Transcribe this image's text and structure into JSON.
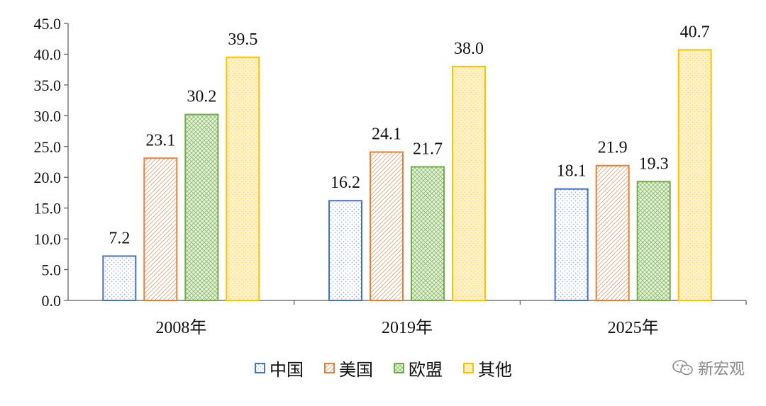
{
  "chart_data": {
    "type": "bar",
    "categories": [
      "2008年",
      "2019年",
      "2025年"
    ],
    "series": [
      {
        "name": "中国",
        "values": [
          7.2,
          16.2,
          18.1
        ],
        "color": "#4472C4",
        "pattern": "dots"
      },
      {
        "name": "美国",
        "values": [
          23.1,
          24.1,
          21.9
        ],
        "color": "#ED7D31",
        "pattern": "diagonal"
      },
      {
        "name": "欧盟",
        "values": [
          30.2,
          21.7,
          19.3
        ],
        "color": "#70AD47",
        "pattern": "crosshatch"
      },
      {
        "name": "其他",
        "values": [
          39.5,
          38.0,
          40.7
        ],
        "color": "#FFC000",
        "pattern": "dots"
      }
    ],
    "data_labels": [
      [
        "7.2",
        "16.2",
        "18.1"
      ],
      [
        "23.1",
        "24.1",
        "21.9"
      ],
      [
        "30.2",
        "21.7",
        "19.3"
      ],
      [
        "39.5",
        "38.0",
        "40.7"
      ]
    ],
    "yticks": [
      "0.0",
      "5.0",
      "10.0",
      "15.0",
      "20.0",
      "25.0",
      "30.0",
      "35.0",
      "40.0",
      "45.0"
    ],
    "ylim": [
      0,
      45
    ],
    "title": "",
    "xlabel": "",
    "ylabel": "",
    "legend_position": "bottom",
    "grid": false
  },
  "watermark": {
    "text": "新宏观",
    "icon": "wechat-icon"
  }
}
